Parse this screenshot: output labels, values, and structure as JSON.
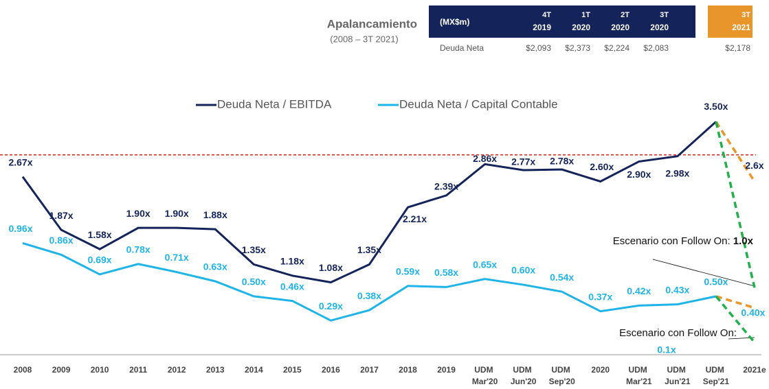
{
  "header": {
    "title": "Apalancamiento",
    "subtitle": "(2008 – 3T 2021)"
  },
  "table": {
    "corner": "(MX$m)",
    "columns": [
      {
        "q": "4T",
        "year": "2019",
        "color": "#14235a"
      },
      {
        "q": "1T",
        "year": "2020",
        "color": "#14235a"
      },
      {
        "q": "2T",
        "year": "2020",
        "color": "#14235a"
      },
      {
        "q": "3T",
        "year": "2020",
        "color": "#14235a"
      },
      {
        "q": "3T",
        "year": "2021",
        "color": "#e8962a"
      }
    ],
    "rows": [
      {
        "label": "Deuda Neta",
        "values": [
          "$2,093",
          "$2,373",
          "$2,224",
          "$2,083",
          "$2,178"
        ]
      }
    ]
  },
  "chart_data": {
    "type": "line",
    "categories": [
      "2008",
      "2009",
      "2010",
      "2011",
      "2012",
      "2013",
      "2014",
      "2015",
      "2016",
      "2017",
      "2018",
      "2019",
      "UDM Mar'20",
      "UDM Jun'20",
      "UDM Sep'20",
      "2020",
      "UDM Mar'21",
      "UDM Jun'21",
      "UDM Sep'21",
      "2021e"
    ],
    "ylim": [
      0,
      4
    ],
    "y2lim": [
      0,
      2.3
    ],
    "legend": "top",
    "reference_line": {
      "value": 3,
      "color": "#e02020"
    },
    "series": [
      {
        "name": "Deuda Neta / EBITDA",
        "color": "#14235a",
        "axis": "y",
        "values": [
          2.67,
          1.87,
          1.58,
          1.9,
          1.9,
          1.88,
          1.35,
          1.18,
          1.08,
          1.35,
          2.21,
          2.39,
          2.86,
          2.77,
          2.78,
          2.6,
          2.9,
          2.98,
          3.5,
          null
        ],
        "value_labels": [
          "2.67x",
          "1.87x",
          "1.58x",
          "1.90x",
          "1.90x",
          "1.88x",
          "1.35x",
          "1.18x",
          "1.08x",
          "1.35x",
          "2.21x",
          "2.39x",
          "2.86x",
          "2.77x",
          "2.78x",
          "2.60x",
          "2.90x",
          "2.98x",
          "3.50x",
          null
        ]
      },
      {
        "name": "Deuda Neta / Capital Contable",
        "color": "#1fb4e8",
        "axis": "y2",
        "values": [
          0.96,
          0.86,
          0.69,
          0.78,
          0.71,
          0.63,
          0.5,
          0.46,
          0.29,
          0.38,
          0.59,
          0.58,
          0.65,
          0.6,
          0.54,
          0.37,
          0.42,
          0.43,
          0.5,
          null
        ],
        "value_labels": [
          "0.96x",
          "0.86x",
          "0.69x",
          "0.78x",
          "0.71x",
          "0.63x",
          "0.50x",
          "0.46x",
          "0.29x",
          "0.38x",
          "0.59x",
          "0.58x",
          "0.65x",
          "0.60x",
          "0.54x",
          "0.37x",
          "0.42x",
          "0.43x",
          "0.50x",
          null
        ]
      }
    ],
    "projections": [
      {
        "series": 0,
        "value": 2.6,
        "label": "2.6x",
        "color": "#e8962a"
      },
      {
        "series": 0,
        "value": 1.0,
        "label": "1.0x",
        "color": "#22b04b",
        "annotation": "Escenario con Follow On:"
      },
      {
        "series": 1,
        "value": 0.4,
        "label": "0.40x",
        "color": "#e8962a"
      },
      {
        "series": 1,
        "value": 0.1,
        "label": "0.1x",
        "color": "#22b04b",
        "annotation": "Escenario con Follow On:"
      }
    ]
  }
}
